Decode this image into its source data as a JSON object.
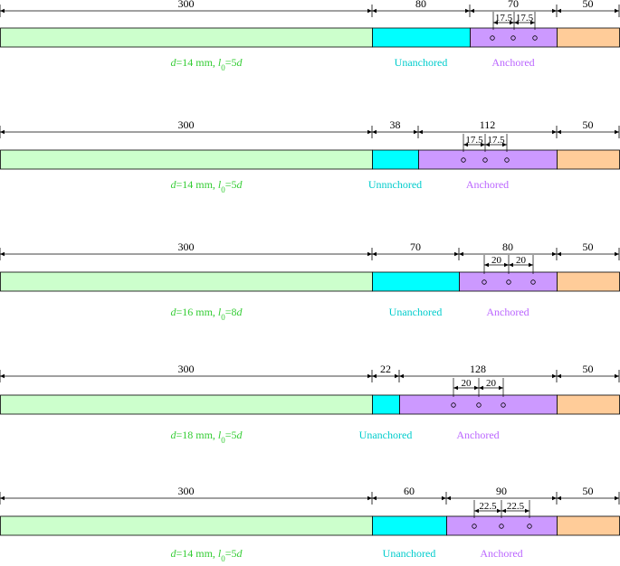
{
  "colors": {
    "green": "#ccffcc",
    "cyan": "#00ffff",
    "purple": "#cc99ff",
    "orange": "#ffcc99",
    "green_text": "#33cc33",
    "cyan_text": "#00cccc",
    "purple_text": "#bb66ff"
  },
  "specimens": [
    {
      "dims": [
        "300",
        "80",
        "70",
        "50"
      ],
      "spacing": [
        "17.5",
        "17.5"
      ],
      "caption": {
        "d": "d",
        "d_value": "=14 mm, ",
        "l": "l",
        "sub": "0",
        "l_value": "=5",
        "l_unit": "d"
      },
      "unanchored_label": "Unanchored",
      "anchored_label": "Anchored"
    },
    {
      "dims": [
        "300",
        "38",
        "112",
        "50"
      ],
      "spacing": [
        "17.5",
        "17.5"
      ],
      "caption": {
        "d": "d",
        "d_value": "=14 mm, ",
        "l": "l",
        "sub": "0",
        "l_value": "=5",
        "l_unit": "d"
      },
      "unanchored_label": "Unnnchored",
      "anchored_label": "Anchored"
    },
    {
      "dims": [
        "300",
        "70",
        "80",
        "50"
      ],
      "spacing": [
        "20",
        "20"
      ],
      "caption": {
        "d": "d",
        "d_value": "=16 mm, ",
        "l": "l",
        "sub": "0",
        "l_value": "=8",
        "l_unit": "d"
      },
      "unanchored_label": "Unanchored",
      "anchored_label": "Anchored"
    },
    {
      "dims": [
        "300",
        "22",
        "128",
        "50"
      ],
      "spacing": [
        "20",
        "20"
      ],
      "caption": {
        "d": "d",
        "d_value": "=18 mm, ",
        "l": "l",
        "sub": "0",
        "l_value": "=5",
        "l_unit": "d"
      },
      "unanchored_label": "Unanchored",
      "anchored_label": "Anchored"
    },
    {
      "dims": [
        "300",
        "60",
        "90",
        "50"
      ],
      "spacing": [
        "22.5",
        "22.5"
      ],
      "caption": {
        "d": "d",
        "d_value": "=14 mm, ",
        "l": "l",
        "sub": "0",
        "l_value": "=5",
        "l_unit": "d"
      },
      "unanchored_label": "Unanchored",
      "anchored_label": "Anchored"
    }
  ]
}
